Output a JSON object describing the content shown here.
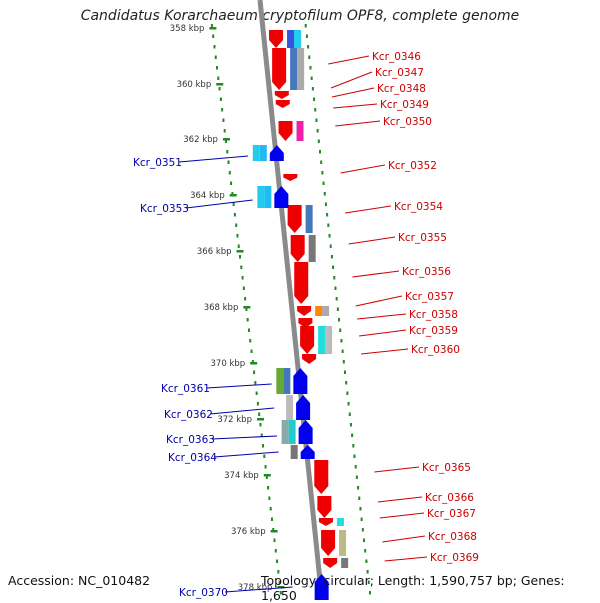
{
  "title": "Candidatus Korarchaeum cryptofilum OPF8, complete genome",
  "footer": {
    "accession": "Accession: NC_010482",
    "summary": "Topology: circular; Length: 1,590,757 bp; Genes: 1,650"
  },
  "ruler": [
    {
      "label": "358 kbp"
    },
    {
      "label": "360 kbp"
    },
    {
      "label": "362 kbp"
    },
    {
      "label": "364 kbp"
    },
    {
      "label": "366 kbp"
    },
    {
      "label": "368 kbp"
    },
    {
      "label": "370 kbp"
    },
    {
      "label": "372 kbp"
    },
    {
      "label": "374 kbp"
    },
    {
      "label": "376 kbp"
    },
    {
      "label": "378 kbp"
    }
  ],
  "genes_forward": [
    "Kcr_0346",
    "Kcr_0347",
    "Kcr_0348",
    "Kcr_0349",
    "Kcr_0350",
    "Kcr_0352",
    "Kcr_0354",
    "Kcr_0355",
    "Kcr_0356",
    "Kcr_0357",
    "Kcr_0358",
    "Kcr_0359",
    "Kcr_0360",
    "Kcr_0365",
    "Kcr_0366",
    "Kcr_0367",
    "Kcr_0368",
    "Kcr_0369"
  ],
  "genes_reverse": [
    "Kcr_0351",
    "Kcr_0353",
    "Kcr_0361",
    "Kcr_0362",
    "Kcr_0363",
    "Kcr_0364",
    "Kcr_0370"
  ],
  "colors": {
    "forward_label": "#cc0000",
    "reverse_label": "#0000aa",
    "forward_gene": "#ee0000",
    "reverse_gene": "#0000ee",
    "backbone": "#8a8a8a",
    "guide_dots": "#228822"
  }
}
